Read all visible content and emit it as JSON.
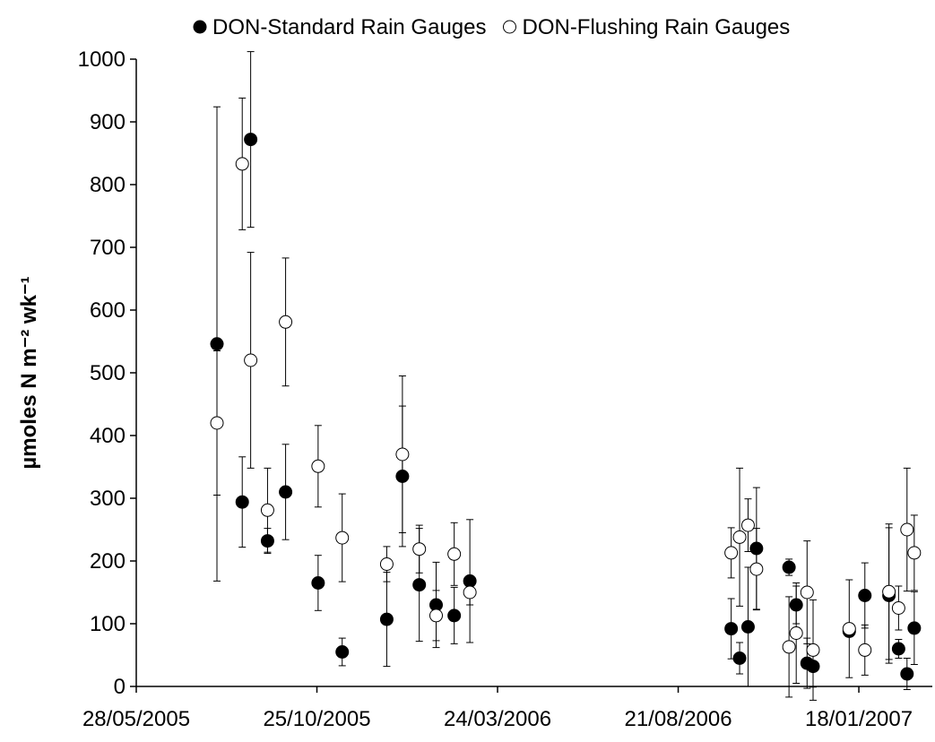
{
  "chart_data": {
    "type": "scatter",
    "y_label": "µmoles N m⁻² wk⁻¹",
    "xlim": [
      "2005-05-28",
      "2007-03-20"
    ],
    "xticks": [
      {
        "value": "2005-05-28",
        "label": "28/05/2005"
      },
      {
        "value": "2005-10-25",
        "label": "25/10/2005"
      },
      {
        "value": "2006-03-24",
        "label": "24/03/2006"
      },
      {
        "value": "2006-08-21",
        "label": "21/08/2006"
      },
      {
        "value": "2007-01-18",
        "label": "18/01/2007"
      }
    ],
    "ylim": [
      0,
      1000
    ],
    "yticks": [
      0,
      100,
      200,
      300,
      400,
      500,
      600,
      700,
      800,
      900,
      1000
    ],
    "legend": "top",
    "series": [
      {
        "name": "DON-Standard Rain Gauges",
        "color": "#000000",
        "marker": "filled",
        "x": [
          "2005-08-03",
          "2005-08-24",
          "2005-08-31",
          "2005-09-14",
          "2005-09-29",
          "2005-10-26",
          "2005-11-15",
          "2005-12-22",
          "2006-01-04",
          "2006-01-18",
          "2006-02-01",
          "2006-02-16",
          "2006-03-01",
          "2006-10-04",
          "2006-10-11",
          "2006-10-18",
          "2006-10-25",
          "2006-11-21",
          "2006-11-27",
          "2006-12-06",
          "2006-12-11",
          "2007-01-10",
          "2007-01-23",
          "2007-02-12",
          "2007-02-20",
          "2007-02-27",
          "2007-03-05"
        ],
        "values": [
          546,
          294,
          872,
          232,
          310,
          165,
          55,
          107,
          335,
          162,
          130,
          113,
          168,
          92,
          45,
          95,
          220,
          190,
          130,
          37,
          32,
          88,
          145,
          145,
          60,
          20,
          93
        ],
        "errors": [
          378,
          72,
          140,
          20,
          76,
          44,
          22,
          75,
          112,
          90,
          68,
          45,
          98,
          48,
          25,
          95,
          97,
          13,
          30,
          40,
          33,
          0,
          52,
          108,
          15,
          25,
          58
        ]
      },
      {
        "name": "DON-Flushing Rain Gauges",
        "color": "#000000",
        "marker": "open",
        "x": [
          "2005-08-03",
          "2005-08-24",
          "2005-08-31",
          "2005-09-14",
          "2005-09-29",
          "2005-10-26",
          "2005-11-15",
          "2005-12-22",
          "2006-01-04",
          "2006-01-18",
          "2006-02-01",
          "2006-02-16",
          "2006-03-01",
          "2006-10-04",
          "2006-10-11",
          "2006-10-18",
          "2006-10-25",
          "2006-11-21",
          "2006-11-27",
          "2006-12-06",
          "2006-12-11",
          "2007-01-10",
          "2007-01-23",
          "2007-02-12",
          "2007-02-20",
          "2007-02-27",
          "2007-03-05"
        ],
        "values": [
          420,
          833,
          520,
          281,
          581,
          351,
          237,
          195,
          370,
          219,
          113,
          211,
          150,
          213,
          238,
          257,
          187,
          63,
          85,
          150,
          58,
          92,
          58,
          151,
          125,
          250,
          213
        ],
        "errors": [
          115,
          105,
          172,
          67,
          102,
          65,
          70,
          28,
          125,
          38,
          40,
          50,
          20,
          40,
          110,
          42,
          65,
          80,
          80,
          82,
          80,
          78,
          40,
          108,
          35,
          98,
          60
        ]
      }
    ]
  }
}
